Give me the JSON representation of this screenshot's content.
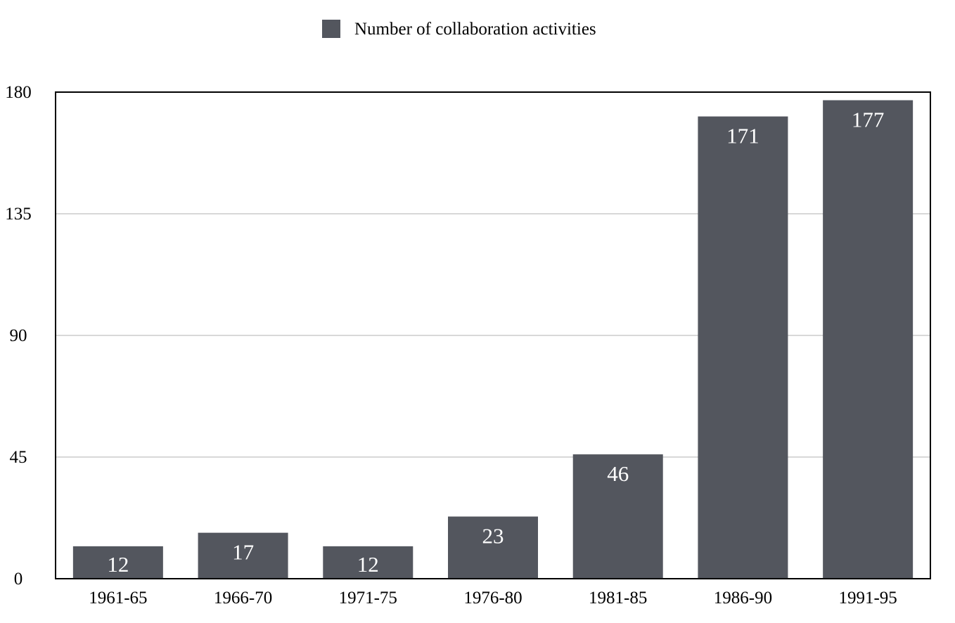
{
  "chart_data": {
    "type": "bar",
    "categories": [
      "1961-65",
      "1966-70",
      "1971-75",
      "1976-80",
      "1981-85",
      "1986-90",
      "1991-95"
    ],
    "series": [
      {
        "name": "Number of collaboration activities",
        "values": [
          12,
          17,
          12,
          23,
          46,
          171,
          177
        ]
      }
    ],
    "title": "",
    "xlabel": "",
    "ylabel": "",
    "ylim": [
      0,
      180
    ],
    "yticks": [
      0,
      45,
      90,
      135,
      180
    ],
    "grid": true,
    "legend_position": "top-center",
    "colors": {
      "bar": "#53565e",
      "grid": "#cccccc",
      "axis": "#000000",
      "data_label": "#ffffff"
    }
  }
}
